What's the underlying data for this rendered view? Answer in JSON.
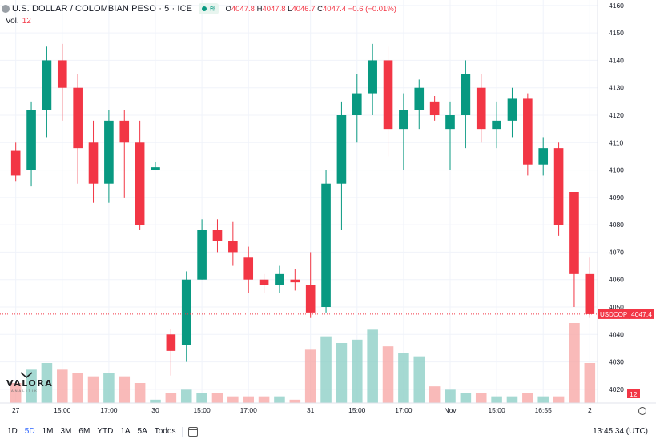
{
  "legend": {
    "symbol": "U.S. DOLLAR / COLOMBIAN PESO · 5 · ICE",
    "market_status_icon": "market-open-icon",
    "ohlc": [
      {
        "k": "O",
        "v": "4047.8"
      },
      {
        "k": "H",
        "v": "4047.8"
      },
      {
        "k": "L",
        "v": "4046.7"
      },
      {
        "k": "C",
        "v": "4047.4"
      }
    ],
    "change": "−0.6 (−0.01%)"
  },
  "volume_legend": {
    "label": "Vol.",
    "value": "12"
  },
  "price_tag": {
    "symbol": "USDCOP",
    "price": "4047.4"
  },
  "volume_tag": "12",
  "logo": {
    "text": "VALORA",
    "sub": "ANALITIK"
  },
  "ranges": [
    "1D",
    "5D",
    "1M",
    "3M",
    "6M",
    "YTD",
    "1A",
    "5A",
    "Todos"
  ],
  "active_range": "5D",
  "clock": "13:45:34 (UTC)",
  "colors": {
    "up": "#089981",
    "down": "#f23645",
    "up_vol": "#8ecfc7",
    "down_vol": "#f7a9a7",
    "grid": "#f0f3fa",
    "text": "#131722"
  },
  "chart_data": [
    {
      "type": "candlestick",
      "ylim": [
        4015,
        4162
      ],
      "y_ticks": [
        4020,
        4030,
        4040,
        4050,
        4060,
        4070,
        4080,
        4090,
        4100,
        4110,
        4120,
        4130,
        4140,
        4150,
        4160
      ],
      "x_ticks": [
        "27",
        "15:00",
        "17:00",
        "30",
        "15:00",
        "17:00",
        "31",
        "15:00",
        "17:00",
        "Nov",
        "15:00",
        "16:55",
        "2"
      ],
      "last_price": 4047.4,
      "candles": [
        {
          "x": "27 13:30",
          "open": 4107,
          "high": 4110,
          "low": 4096,
          "close": 4098
        },
        {
          "x": "27 14:00",
          "open": 4100,
          "high": 4125,
          "low": 4094,
          "close": 4122
        },
        {
          "x": "27 14:30",
          "open": 4122,
          "high": 4145,
          "low": 4112,
          "close": 4140
        },
        {
          "x": "27 15:00",
          "open": 4140,
          "high": 4146,
          "low": 4118,
          "close": 4130
        },
        {
          "x": "27 15:30",
          "open": 4130,
          "high": 4135,
          "low": 4095,
          "close": 4108
        },
        {
          "x": "27 16:00",
          "open": 4110,
          "high": 4118,
          "low": 4088,
          "close": 4095
        },
        {
          "x": "27 16:30",
          "open": 4095,
          "high": 4122,
          "low": 4088,
          "close": 4118
        },
        {
          "x": "27 17:00",
          "open": 4118,
          "high": 4122,
          "low": 4090,
          "close": 4110
        },
        {
          "x": "27 17:30",
          "open": 4110,
          "high": 4118,
          "low": 4078,
          "close": 4080
        },
        {
          "x": "27 18:00",
          "open": 4100,
          "high": 4103,
          "low": 4100,
          "close": 4101
        },
        {
          "x": "30 13:30",
          "open": 4040,
          "high": 4042,
          "low": 4025,
          "close": 4034
        },
        {
          "x": "30 14:00",
          "open": 4036,
          "high": 4063,
          "low": 4030,
          "close": 4060
        },
        {
          "x": "30 14:30",
          "open": 4060,
          "high": 4082,
          "low": 4060,
          "close": 4078
        },
        {
          "x": "30 15:00",
          "open": 4078,
          "high": 4082,
          "low": 4070,
          "close": 4074
        },
        {
          "x": "30 15:30",
          "open": 4074,
          "high": 4081,
          "low": 4065,
          "close": 4070
        },
        {
          "x": "30 16:00",
          "open": 4068,
          "high": 4072,
          "low": 4055,
          "close": 4060
        },
        {
          "x": "30 16:30",
          "open": 4060,
          "high": 4062,
          "low": 4055,
          "close": 4058
        },
        {
          "x": "30 17:00",
          "open": 4058,
          "high": 4065,
          "low": 4055,
          "close": 4062
        },
        {
          "x": "30 17:30",
          "open": 4060,
          "high": 4064,
          "low": 4056,
          "close": 4059
        },
        {
          "x": "31 13:30",
          "open": 4058,
          "high": 4070,
          "low": 4046,
          "close": 4048
        },
        {
          "x": "31 14:00",
          "open": 4050,
          "high": 4100,
          "low": 4048,
          "close": 4095
        },
        {
          "x": "31 14:30",
          "open": 4095,
          "high": 4125,
          "low": 4078,
          "close": 4120
        },
        {
          "x": "31 15:00",
          "open": 4120,
          "high": 4135,
          "low": 4110,
          "close": 4128
        },
        {
          "x": "31 15:30",
          "open": 4128,
          "high": 4146,
          "low": 4120,
          "close": 4140
        },
        {
          "x": "31 16:00",
          "open": 4140,
          "high": 4145,
          "low": 4105,
          "close": 4115
        },
        {
          "x": "31 16:30",
          "open": 4115,
          "high": 4128,
          "low": 4100,
          "close": 4122
        },
        {
          "x": "31 17:00",
          "open": 4122,
          "high": 4133,
          "low": 4115,
          "close": 4130
        },
        {
          "x": "31 17:30",
          "open": 4125,
          "high": 4127,
          "low": 4118,
          "close": 4120
        },
        {
          "x": "Nov 13:30",
          "open": 4115,
          "high": 4125,
          "low": 4100,
          "close": 4120
        },
        {
          "x": "Nov 14:00",
          "open": 4120,
          "high": 4140,
          "low": 4108,
          "close": 4135
        },
        {
          "x": "Nov 14:30",
          "open": 4130,
          "high": 4135,
          "low": 4110,
          "close": 4115
        },
        {
          "x": "Nov 15:00",
          "open": 4115,
          "high": 4125,
          "low": 4108,
          "close": 4118
        },
        {
          "x": "Nov 15:30",
          "open": 4118,
          "high": 4130,
          "low": 4112,
          "close": 4126
        },
        {
          "x": "Nov 16:00",
          "open": 4126,
          "high": 4128,
          "low": 4098,
          "close": 4102
        },
        {
          "x": "Nov 16:30",
          "open": 4102,
          "high": 4112,
          "low": 4098,
          "close": 4108
        },
        {
          "x": "Nov 16:55",
          "open": 4108,
          "high": 4110,
          "low": 4076,
          "close": 4080
        },
        {
          "x": "2 13:30",
          "open": 4092,
          "high": 4092,
          "low": 4050,
          "close": 4062
        },
        {
          "x": "2 13:45",
          "open": 4062,
          "high": 4068,
          "low": 4046,
          "close": 4047.4
        }
      ],
      "volumes": [
        6,
        10,
        12,
        10,
        9,
        8,
        9,
        8,
        6,
        1,
        3,
        4,
        3,
        3,
        2,
        2,
        2,
        2,
        1,
        16,
        20,
        18,
        19,
        22,
        17,
        15,
        14,
        5,
        4,
        3,
        3,
        2,
        2,
        3,
        2,
        2,
        24,
        12
      ]
    }
  ]
}
